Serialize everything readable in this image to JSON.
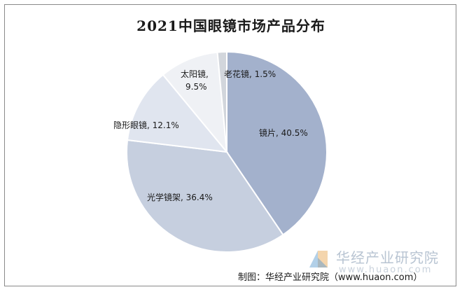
{
  "chart_data": {
    "type": "pie",
    "title": "2021中国眼镜市场产品分布",
    "categories": [
      "镜片",
      "光学镜架",
      "隐形眼镜",
      "太阳镜",
      "老花镜"
    ],
    "values": [
      40.5,
      36.4,
      12.1,
      9.5,
      1.5
    ],
    "unit": "%",
    "labels": [
      "镜片, 40.5%",
      "光学镜架, 36.4%",
      "隐形眼镜, 12.1%",
      "太阳镜,",
      "9.5%",
      "老花镜, 1.5%"
    ],
    "colors": [
      "#a3b1cc",
      "#c6cfdf",
      "#e0e5ef",
      "#eff1f5",
      "#d2d6dc"
    ],
    "legend": "none",
    "start_angle_deg": 0,
    "direction": "clockwise"
  },
  "watermark": {
    "brand": "华经产业研究院",
    "url": "www.huaon.com"
  },
  "source_note": "制图：华经产业研究院（www.huaon.com）"
}
